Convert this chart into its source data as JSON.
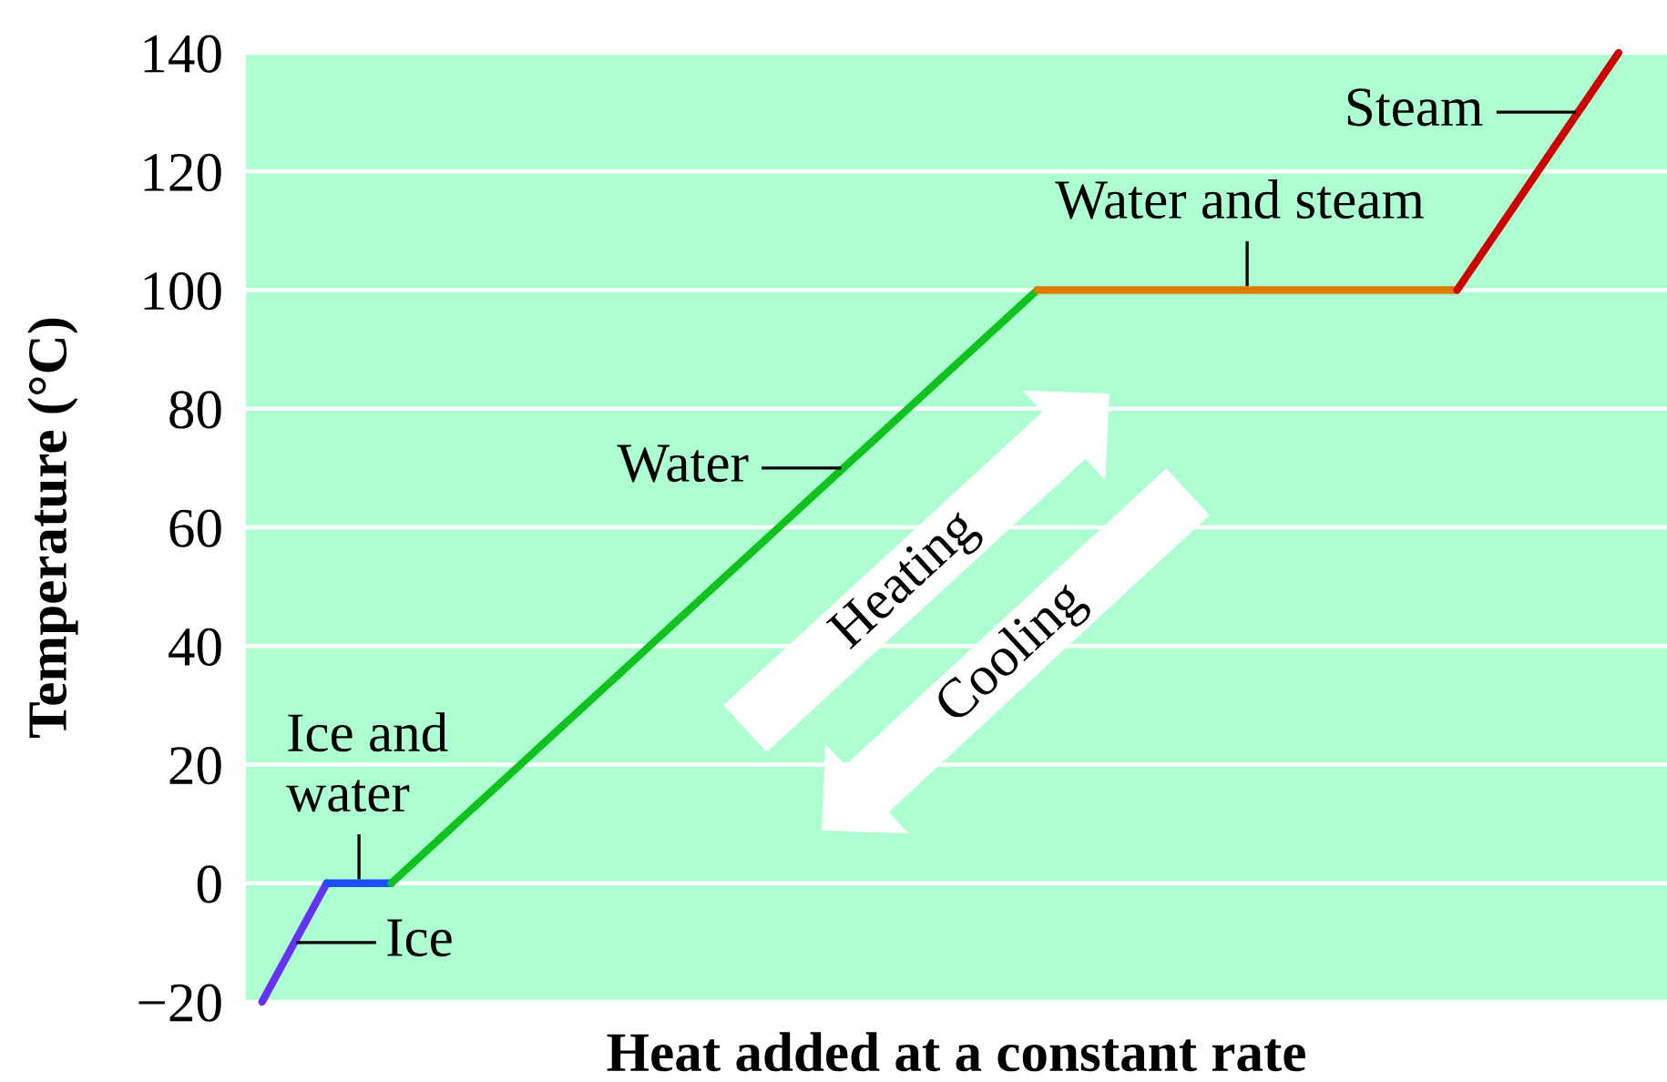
{
  "chart_data": {
    "type": "line",
    "xlabel": "Heat added at a constant rate",
    "ylabel": "Temperature (°C)",
    "categories": [
      null,
      null,
      null,
      null,
      null,
      null,
      null,
      null,
      null,
      null,
      null,
      null,
      null,
      null,
      null,
      null,
      null,
      null,
      null,
      null,
      null,
      null,
      null,
      null,
      null,
      null,
      null,
      null,
      null,
      null,
      null,
      null,
      null,
      null,
      null,
      null,
      null,
      null,
      null,
      null,
      null,
      null,
      null,
      null
    ],
    "series": [
      {
        "name": "Ice",
        "color": "#6633f5",
        "values": [
          -20,
          -10,
          0,
          null,
          null,
          null,
          null,
          null,
          null,
          null,
          null,
          null,
          null,
          null,
          null,
          null,
          null,
          null,
          null,
          null,
          null,
          null,
          null,
          null,
          null,
          null,
          null,
          null,
          null,
          null,
          null,
          null,
          null,
          null,
          null,
          null,
          null,
          null,
          null,
          null,
          null,
          null,
          null,
          null
        ]
      },
      {
        "name": "Ice and\nwater",
        "color": "#1a4fff",
        "values": [
          null,
          null,
          0,
          0,
          0,
          null,
          null,
          null,
          null,
          null,
          null,
          null,
          null,
          null,
          null,
          null,
          null,
          null,
          null,
          null,
          null,
          null,
          null,
          null,
          null,
          null,
          null,
          null,
          null,
          null,
          null,
          null,
          null,
          null,
          null,
          null,
          null,
          null,
          null,
          null,
          null,
          null,
          null,
          null
        ]
      },
      {
        "name": "Water",
        "color": "#10c21e",
        "values": [
          null,
          null,
          null,
          null,
          0,
          5,
          10,
          15,
          20,
          25,
          30,
          35,
          40,
          45,
          50,
          55,
          60,
          65,
          70,
          75,
          80,
          85,
          90,
          95,
          100,
          null,
          null,
          null,
          null,
          null,
          null,
          null,
          null,
          null,
          null,
          null,
          null,
          null,
          null,
          null,
          null,
          null,
          null,
          null
        ]
      },
      {
        "name": "Water and steam",
        "color": "#dd7a00",
        "values": [
          null,
          null,
          null,
          null,
          null,
          null,
          null,
          null,
          null,
          null,
          null,
          null,
          null,
          null,
          null,
          null,
          null,
          null,
          null,
          null,
          null,
          null,
          null,
          null,
          100,
          100,
          100,
          100,
          100,
          100,
          100,
          100,
          100,
          100,
          100,
          100,
          100,
          100,
          null,
          null,
          null,
          null,
          null,
          null
        ]
      },
      {
        "name": "Steam",
        "color": "#cc0000",
        "values": [
          null,
          null,
          null,
          null,
          null,
          null,
          null,
          null,
          null,
          null,
          null,
          null,
          null,
          null,
          null,
          null,
          null,
          null,
          null,
          null,
          null,
          null,
          null,
          null,
          null,
          null,
          null,
          null,
          null,
          null,
          null,
          null,
          null,
          null,
          null,
          null,
          null,
          100,
          108,
          116,
          124,
          132,
          140,
          null
        ]
      }
    ],
    "ylim": [
      -20,
      140
    ],
    "yticks": [
      {
        "value": -20,
        "label": "−20"
      },
      0,
      20,
      40,
      60,
      80,
      100,
      120,
      140
    ],
    "grid": "y",
    "tick_labels": "y",
    "annotations": [
      "Heating",
      "Cooling"
    ]
  }
}
